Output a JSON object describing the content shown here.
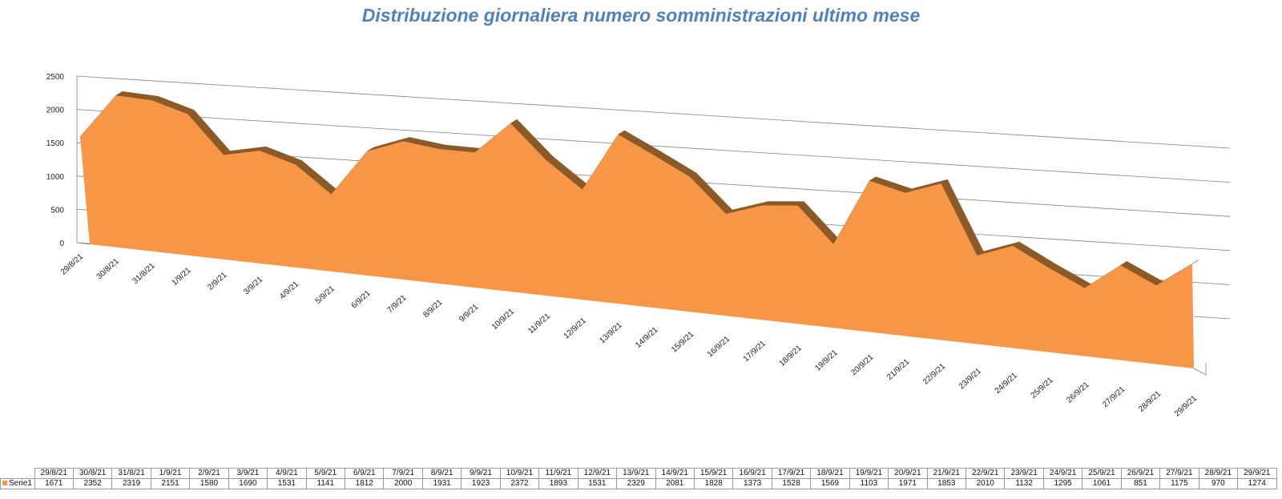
{
  "colors": {
    "area": "#f79646",
    "area_dark": "#8c5a26",
    "title": "#4f81bd"
  },
  "chart_data": {
    "type": "area",
    "title": "Distribuzione giornaliera numero somministrazioni ultimo mese",
    "categories": [
      "29/8/21",
      "30/8/21",
      "31/8/21",
      "1/9/21",
      "2/9/21",
      "3/9/21",
      "4/9/21",
      "5/9/21",
      "6/9/21",
      "7/9/21",
      "8/9/21",
      "9/9/21",
      "10/9/21",
      "11/9/21",
      "12/9/21",
      "13/9/21",
      "14/9/21",
      "15/9/21",
      "16/9/21",
      "17/9/21",
      "18/9/21",
      "19/9/21",
      "20/9/21",
      "21/9/21",
      "22/9/21",
      "23/9/21",
      "24/9/21",
      "25/9/21",
      "26/9/21",
      "27/9/21",
      "28/9/21",
      "29/9/21"
    ],
    "series": [
      {
        "name": "Serie1",
        "values": [
          1671,
          2352,
          2319,
          2151,
          1580,
          1690,
          1531,
          1141,
          1812,
          2000,
          1931,
          1923,
          2372,
          1893,
          1531,
          2329,
          2081,
          1828,
          1373,
          1528,
          1569,
          1103,
          1971,
          1853,
          2010,
          1132,
          1295,
          1061,
          851,
          1175,
          970,
          1274
        ]
      }
    ],
    "yticks": [
      "0",
      "500",
      "1000",
      "1500",
      "2000",
      "2500"
    ],
    "ylim": [
      0,
      2500
    ],
    "grid": true,
    "legend": "data-table"
  }
}
